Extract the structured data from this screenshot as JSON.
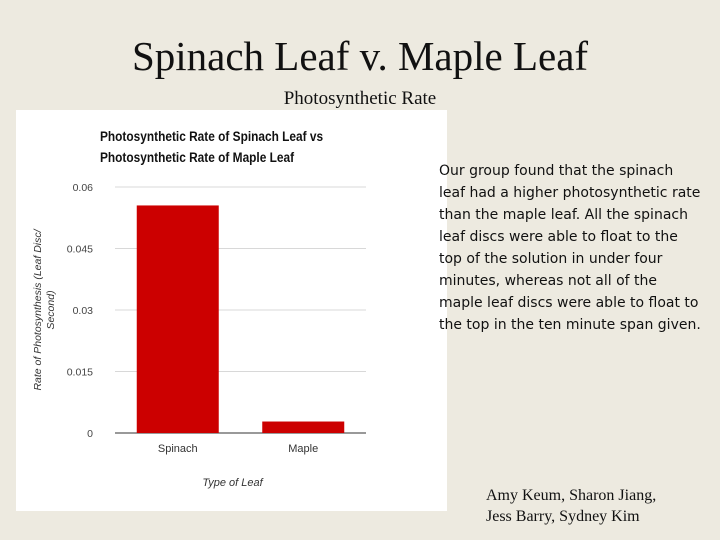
{
  "slide": {
    "title": "Spinach Leaf v. Maple Leaf",
    "subtitle": "Photosynthetic Rate",
    "body": "Our group found that the spinach leaf had a higher photosynthetic rate than the maple leaf. All the spinach leaf discs were able to float to the top of the solution in under four minutes, whereas not all of the maple leaf discs were able to float to the top in the ten minute span given.",
    "authors_line1": "Amy Keum, Sharon Jiang,",
    "authors_line2": "Jess Barry, Sydney Kim"
  },
  "chart_data": {
    "type": "bar",
    "title_line1": "Photosynthetic Rate of Spinach Leaf vs",
    "title_line2": "Photosynthetic Rate of Maple Leaf",
    "categories": [
      "Spinach",
      "Maple"
    ],
    "values": [
      0.0555,
      0.0028
    ],
    "xlabel": "Type of Leaf",
    "ylabel_line1": "Rate of Photosynthesis (Leaf Disc/",
    "ylabel_line2": "Second)",
    "ylim": [
      0,
      0.06
    ],
    "yticks": [
      "0",
      "0.015",
      "0.03",
      "0.045",
      "0.06"
    ],
    "grid": true,
    "legend": "none",
    "bar_color": "#cc0000"
  }
}
